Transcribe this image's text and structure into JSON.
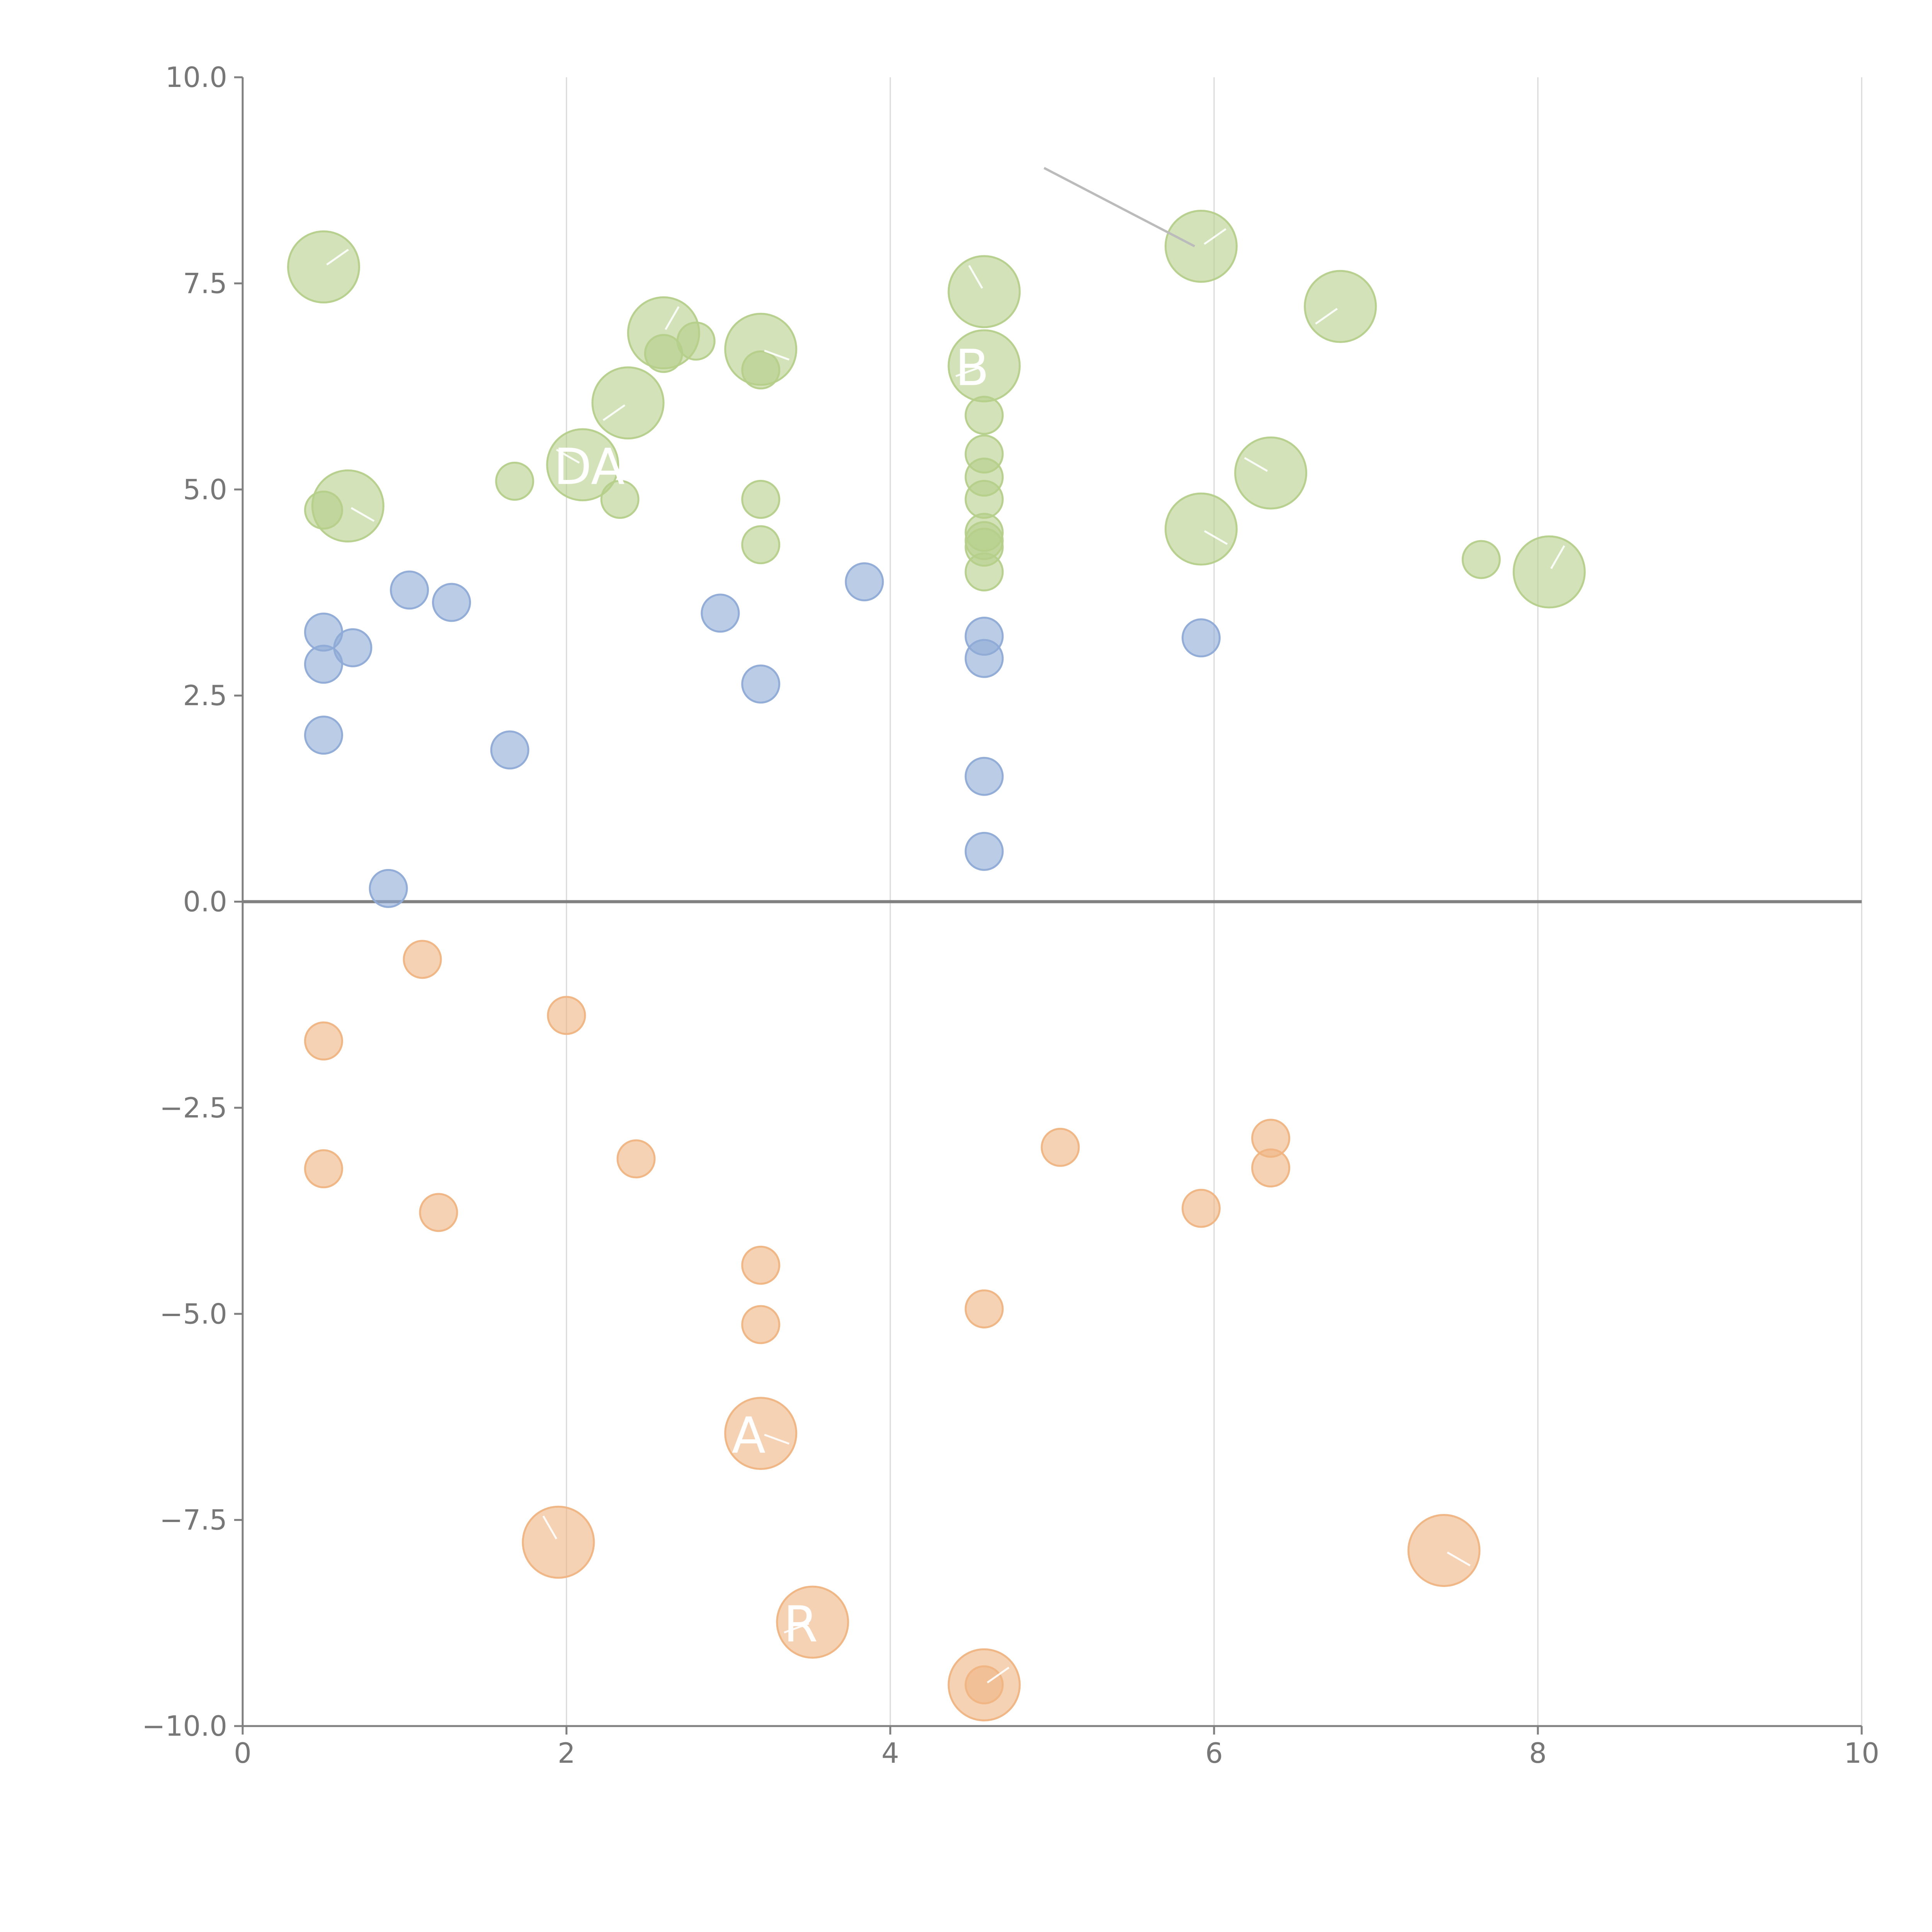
{
  "chart_data": {
    "type": "scatter",
    "title": "",
    "xlabel": "",
    "ylabel": "",
    "xlim": [
      0,
      10
    ],
    "ylim": [
      -10,
      10
    ],
    "x_ticks": [
      "0",
      "2",
      "4",
      "6",
      "8",
      "10"
    ],
    "y_ticks": [
      "10.0",
      "7.5",
      "5.0",
      "2.5",
      "0.0",
      "−2.5",
      "−5.0",
      "−7.5",
      "−10.0"
    ],
    "grid": "vertical",
    "reference_line_y": 0,
    "colors": {
      "green": "#b5cf8a",
      "blue": "#8eaad6",
      "orange": "#efb482"
    },
    "series": [
      {
        "color": "green",
        "points": [
          {
            "x": 0.5,
            "y": 7.7,
            "size": 2
          },
          {
            "x": 0.65,
            "y": 4.8,
            "size": 2
          },
          {
            "x": 0.5,
            "y": 4.75,
            "size": 1
          },
          {
            "x": 1.68,
            "y": 5.1,
            "size": 1
          },
          {
            "x": 2.1,
            "y": 5.3,
            "size": 2,
            "label": "DA"
          },
          {
            "x": 2.38,
            "y": 6.05,
            "size": 2
          },
          {
            "x": 2.33,
            "y": 4.88,
            "size": 1
          },
          {
            "x": 2.6,
            "y": 6.9,
            "size": 2
          },
          {
            "x": 2.6,
            "y": 6.65,
            "size": 1
          },
          {
            "x": 2.8,
            "y": 6.8,
            "size": 1
          },
          {
            "x": 3.2,
            "y": 6.7,
            "size": 2
          },
          {
            "x": 3.2,
            "y": 6.45,
            "size": 1
          },
          {
            "x": 3.2,
            "y": 4.88,
            "size": 1
          },
          {
            "x": 3.2,
            "y": 4.33,
            "size": 1
          },
          {
            "x": 4.58,
            "y": 7.4,
            "size": 2
          },
          {
            "x": 4.58,
            "y": 6.5,
            "size": 2,
            "label": "B"
          },
          {
            "x": 4.58,
            "y": 5.9,
            "size": 1
          },
          {
            "x": 4.58,
            "y": 5.43,
            "size": 1
          },
          {
            "x": 4.58,
            "y": 5.15,
            "size": 1
          },
          {
            "x": 4.58,
            "y": 4.88,
            "size": 1
          },
          {
            "x": 4.58,
            "y": 4.48,
            "size": 1
          },
          {
            "x": 4.58,
            "y": 4.38,
            "size": 1
          },
          {
            "x": 4.58,
            "y": 4.3,
            "size": 1
          },
          {
            "x": 4.58,
            "y": 4.0,
            "size": 1
          },
          {
            "x": 5.92,
            "y": 7.95,
            "size": 2
          },
          {
            "x": 5.92,
            "y": 4.52,
            "size": 2
          },
          {
            "x": 6.35,
            "y": 5.2,
            "size": 2
          },
          {
            "x": 6.78,
            "y": 7.22,
            "size": 2
          },
          {
            "x": 7.65,
            "y": 4.15,
            "size": 1
          },
          {
            "x": 8.07,
            "y": 4.0,
            "size": 2
          }
        ]
      },
      {
        "color": "blue",
        "points": [
          {
            "x": 0.5,
            "y": 3.27,
            "size": 1
          },
          {
            "x": 0.5,
            "y": 2.88,
            "size": 1
          },
          {
            "x": 0.5,
            "y": 2.02,
            "size": 1
          },
          {
            "x": 0.68,
            "y": 3.08,
            "size": 1
          },
          {
            "x": 0.9,
            "y": 0.16,
            "size": 1
          },
          {
            "x": 1.03,
            "y": 3.78,
            "size": 1
          },
          {
            "x": 1.29,
            "y": 3.63,
            "size": 1
          },
          {
            "x": 1.65,
            "y": 1.84,
            "size": 1
          },
          {
            "x": 2.95,
            "y": 3.5,
            "size": 1
          },
          {
            "x": 3.2,
            "y": 2.64,
            "size": 1
          },
          {
            "x": 3.84,
            "y": 3.88,
            "size": 1
          },
          {
            "x": 4.58,
            "y": 3.22,
            "size": 1
          },
          {
            "x": 4.58,
            "y": 2.95,
            "size": 1
          },
          {
            "x": 4.58,
            "y": 1.52,
            "size": 1
          },
          {
            "x": 4.58,
            "y": 0.61,
            "size": 1
          },
          {
            "x": 5.92,
            "y": 3.2,
            "size": 1
          }
        ]
      },
      {
        "color": "orange",
        "points": [
          {
            "x": 1.11,
            "y": -0.7,
            "size": 1
          },
          {
            "x": 0.5,
            "y": -1.69,
            "size": 1
          },
          {
            "x": 2.0,
            "y": -1.38,
            "size": 1
          },
          {
            "x": 0.5,
            "y": -3.24,
            "size": 1
          },
          {
            "x": 1.21,
            "y": -3.77,
            "size": 1
          },
          {
            "x": 2.43,
            "y": -3.12,
            "size": 1
          },
          {
            "x": 3.2,
            "y": -4.41,
            "size": 1
          },
          {
            "x": 3.2,
            "y": -5.13,
            "size": 1
          },
          {
            "x": 4.58,
            "y": -4.94,
            "size": 1
          },
          {
            "x": 5.05,
            "y": -2.98,
            "size": 1
          },
          {
            "x": 5.92,
            "y": -3.72,
            "size": 1
          },
          {
            "x": 6.35,
            "y": -2.87,
            "size": 1
          },
          {
            "x": 6.35,
            "y": -3.23,
            "size": 1
          },
          {
            "x": 3.2,
            "y": -6.45,
            "size": 2,
            "label": "A"
          },
          {
            "x": 1.95,
            "y": -7.77,
            "size": 2
          },
          {
            "x": 3.52,
            "y": -8.74,
            "size": 2,
            "label": "R"
          },
          {
            "x": 4.58,
            "y": -9.5,
            "size": 2
          },
          {
            "x": 4.58,
            "y": -9.5,
            "size": 1
          },
          {
            "x": 7.42,
            "y": -7.87,
            "size": 2
          }
        ]
      }
    ]
  }
}
